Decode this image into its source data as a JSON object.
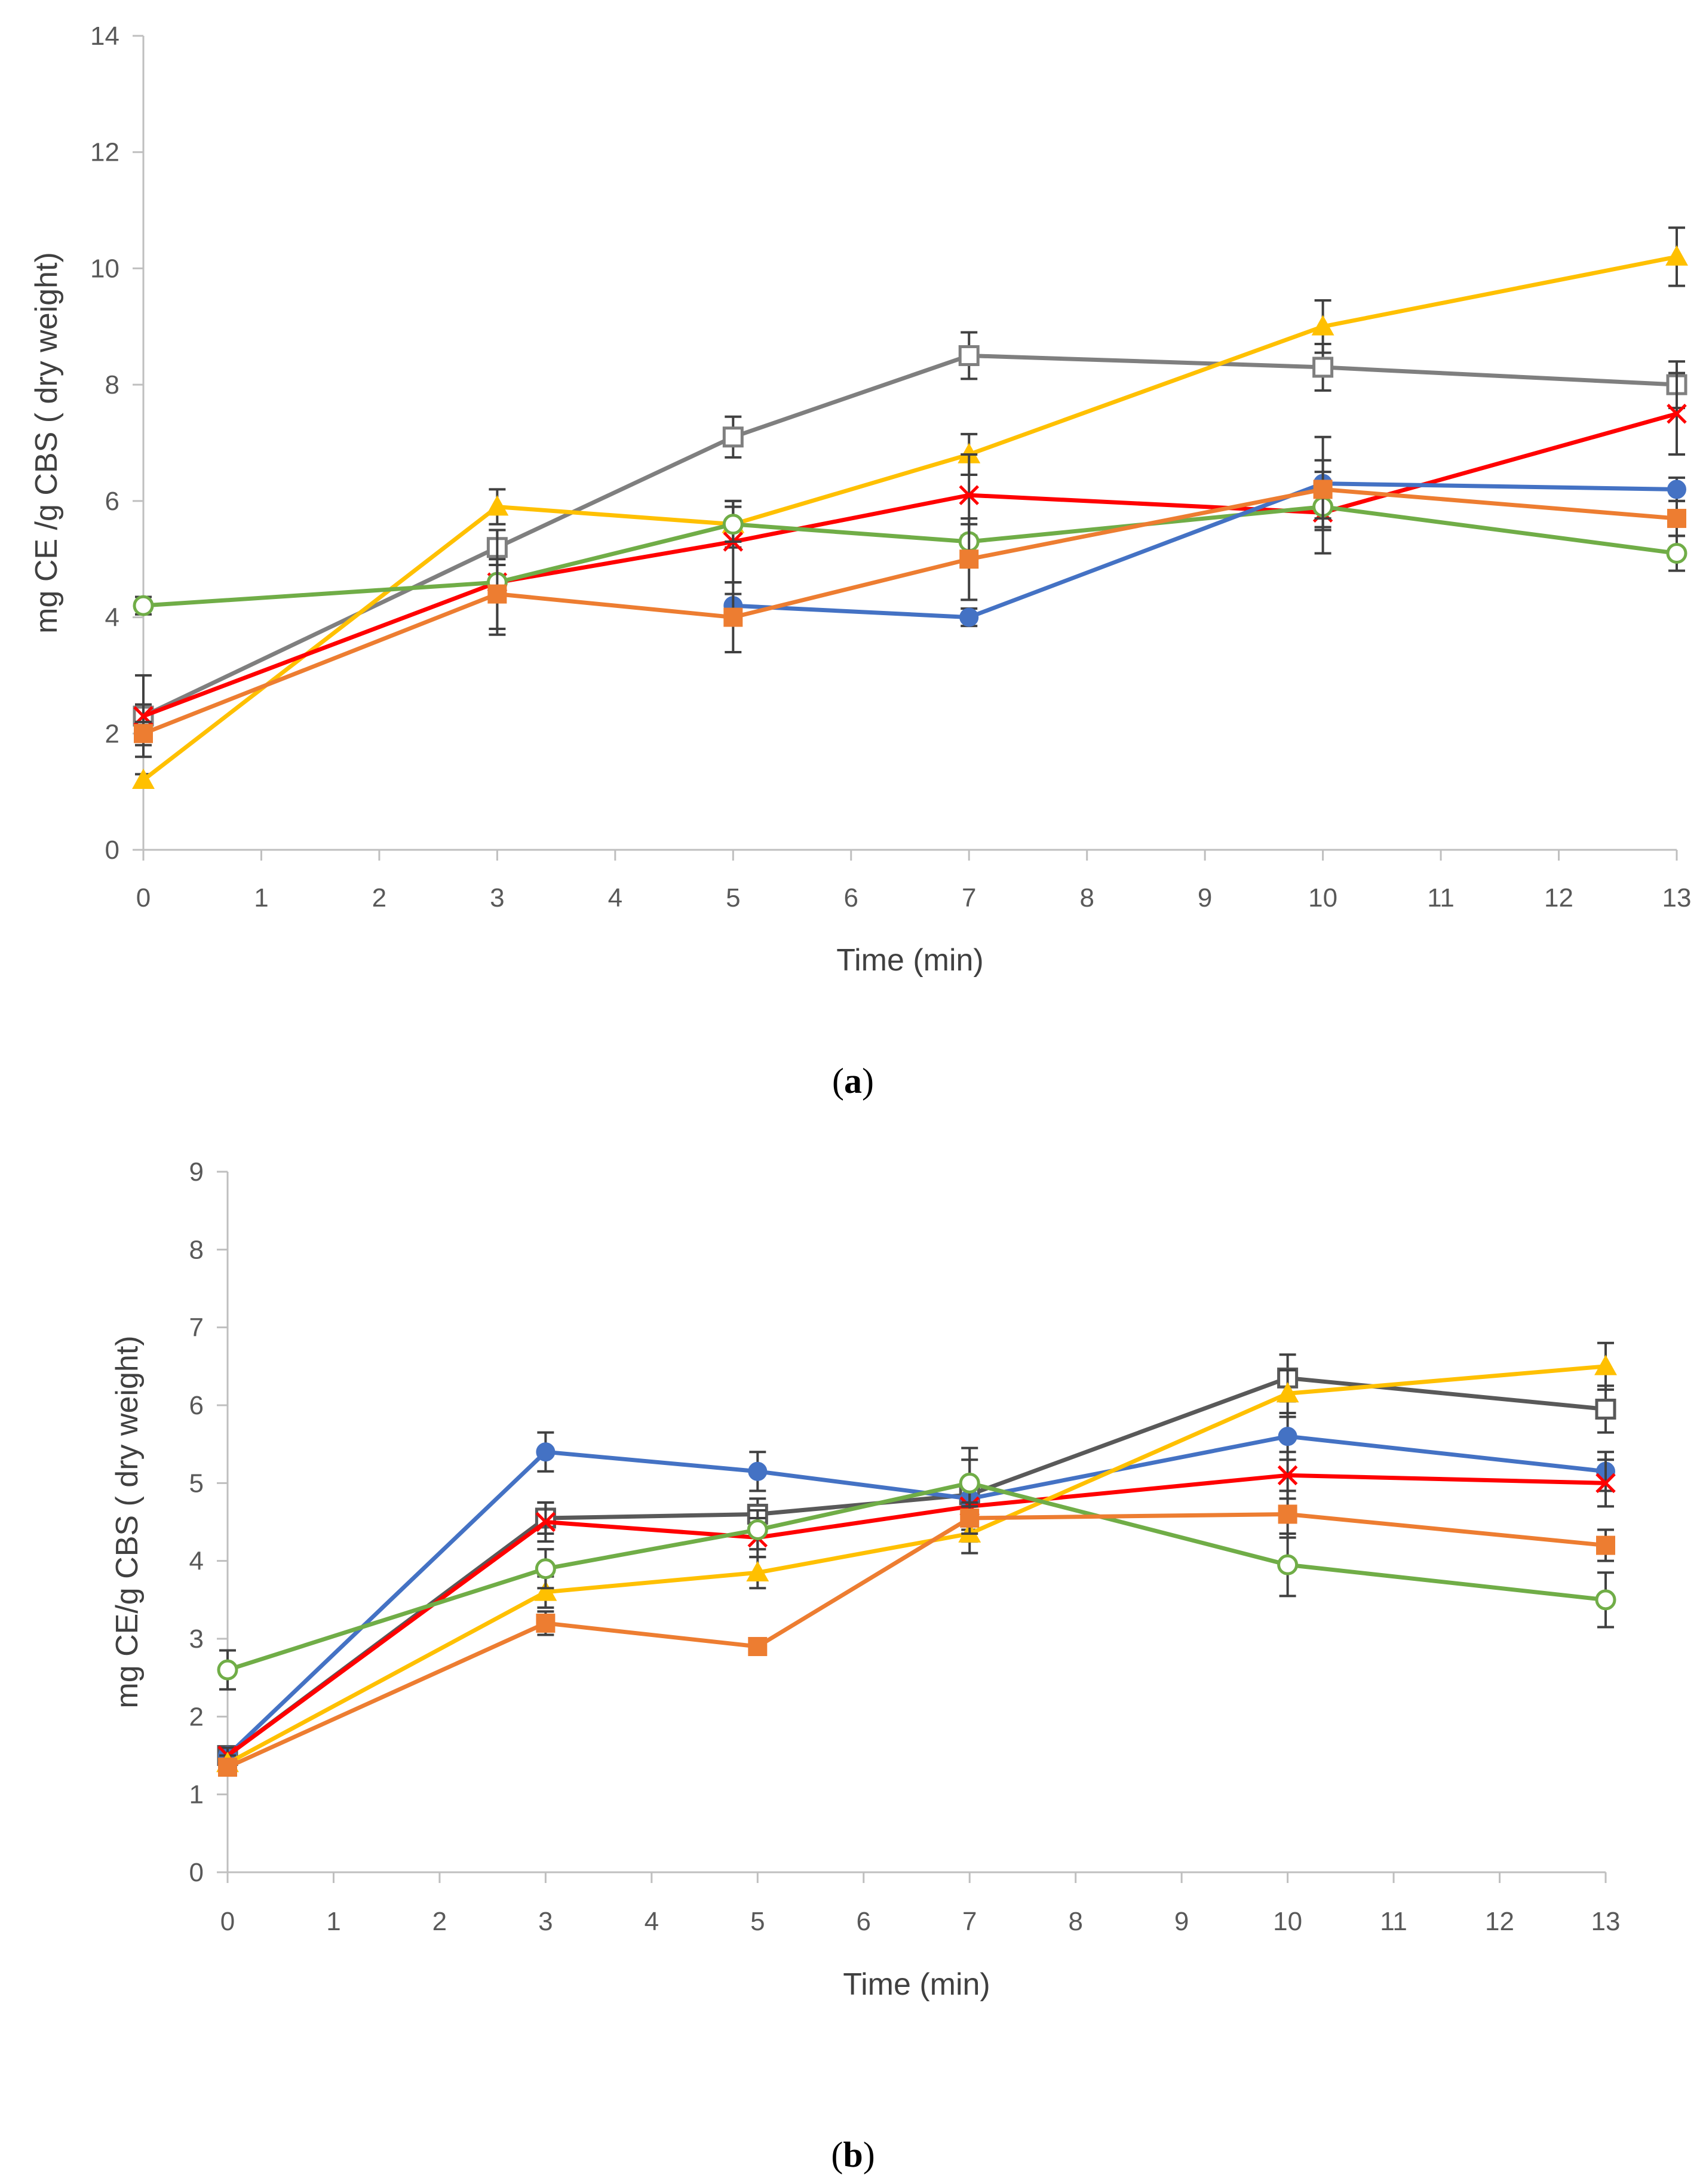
{
  "charts": [
    {
      "id": "a",
      "panel_label": "a",
      "chart_data": {
        "type": "line",
        "xlabel": "Time (min)",
        "ylabel": "mg CE /g CBS ( dry weight)",
        "xlim": [
          0,
          13
        ],
        "ylim": [
          0,
          14
        ],
        "xticks": [
          0,
          1,
          2,
          3,
          4,
          5,
          6,
          7,
          8,
          9,
          10,
          11,
          12,
          13
        ],
        "yticks": [
          0,
          2,
          4,
          6,
          8,
          10,
          12,
          14
        ],
        "x": [
          0,
          3,
          5,
          7,
          10,
          13
        ],
        "series": [
          {
            "name": "gray-open-square",
            "color": "#7f7f7f",
            "marker": "square-open",
            "values": [
              2.3,
              5.2,
              7.1,
              8.5,
              8.3,
              8.0
            ],
            "err": [
              0.2,
              0.3,
              0.35,
              0.4,
              0.4,
              0.4
            ]
          },
          {
            "name": "yellow-triangle",
            "color": "#ffc000",
            "marker": "triangle",
            "values": [
              1.2,
              5.9,
              5.6,
              6.8,
              9.0,
              10.2
            ],
            "err": [
              0.1,
              0.3,
              0.4,
              0.35,
              0.45,
              0.5
            ]
          },
          {
            "name": "red-cross",
            "color": "#ff0000",
            "marker": "cross",
            "values": [
              2.3,
              4.6,
              5.3,
              6.1,
              5.8,
              7.5
            ],
            "err": [
              0.7,
              0.9,
              0.7,
              0.7,
              0.7,
              0.7
            ]
          },
          {
            "name": "green-open-circle",
            "color": "#70ad47",
            "marker": "circle-open",
            "values": [
              4.2,
              4.6,
              5.6,
              5.3,
              5.9,
              5.1
            ],
            "err": [
              0.15,
              0.3,
              0.3,
              0.3,
              0.35,
              0.3
            ]
          },
          {
            "name": "blue-circle",
            "color": "#4472c4",
            "marker": "circle",
            "values": [
              null,
              null,
              4.2,
              4.0,
              6.3,
              6.2
            ],
            "err": [
              0,
              0,
              0.2,
              0.15,
              0.8,
              0.2
            ]
          },
          {
            "name": "orange-square",
            "color": "#ed7d31",
            "marker": "square",
            "values": [
              2.0,
              4.4,
              4.0,
              5.0,
              6.2,
              5.7
            ],
            "err": [
              0.2,
              0.6,
              0.6,
              0.7,
              0.5,
              0.3
            ]
          }
        ]
      }
    },
    {
      "id": "b",
      "panel_label": "b",
      "chart_data": {
        "type": "line",
        "xlabel": "Time (min)",
        "ylabel": "mg CE/g CBS ( dry weight)",
        "xlim": [
          0,
          13
        ],
        "ylim": [
          0,
          9
        ],
        "xticks": [
          0,
          1,
          2,
          3,
          4,
          5,
          6,
          7,
          8,
          9,
          10,
          11,
          12,
          13
        ],
        "yticks": [
          0,
          1,
          2,
          3,
          4,
          5,
          6,
          7,
          8,
          9
        ],
        "x": [
          0,
          3,
          5,
          7,
          10,
          13
        ],
        "series": [
          {
            "name": "gray-open-square",
            "color": "#595959",
            "marker": "square-open",
            "values": [
              1.5,
              4.55,
              4.6,
              4.85,
              6.35,
              5.95
            ],
            "err": [
              0.1,
              0.2,
              0.2,
              0.6,
              0.3,
              0.3
            ]
          },
          {
            "name": "blue-circle",
            "color": "#4472c4",
            "marker": "circle",
            "values": [
              1.5,
              5.4,
              5.15,
              4.8,
              5.6,
              5.15
            ],
            "err": [
              0.1,
              0.25,
              0.25,
              0.25,
              0.3,
              0.25
            ]
          },
          {
            "name": "red-cross",
            "color": "#ff0000",
            "marker": "cross",
            "values": [
              1.5,
              4.5,
              4.3,
              4.7,
              5.1,
              5.0
            ],
            "err": [
              0.1,
              0.25,
              0.25,
              0.3,
              0.3,
              0.3
            ]
          },
          {
            "name": "yellow-triangle",
            "color": "#ffc000",
            "marker": "triangle",
            "values": [
              1.4,
              3.6,
              3.85,
              4.35,
              6.15,
              6.5
            ],
            "err": [
              0.1,
              0.2,
              0.2,
              0.25,
              0.3,
              0.3
            ]
          },
          {
            "name": "green-open-circle",
            "color": "#70ad47",
            "marker": "circle-open",
            "values": [
              2.6,
              3.9,
              4.4,
              5.0,
              3.95,
              3.5
            ],
            "err": [
              0.25,
              0.25,
              0.25,
              0.3,
              0.4,
              0.35
            ]
          },
          {
            "name": "orange-square",
            "color": "#ed7d31",
            "marker": "square",
            "values": [
              1.35,
              3.2,
              2.9,
              4.55,
              4.6,
              4.2
            ],
            "err": [
              0.1,
              0.15,
              0.1,
              0.2,
              0.3,
              0.2
            ]
          }
        ]
      }
    }
  ]
}
